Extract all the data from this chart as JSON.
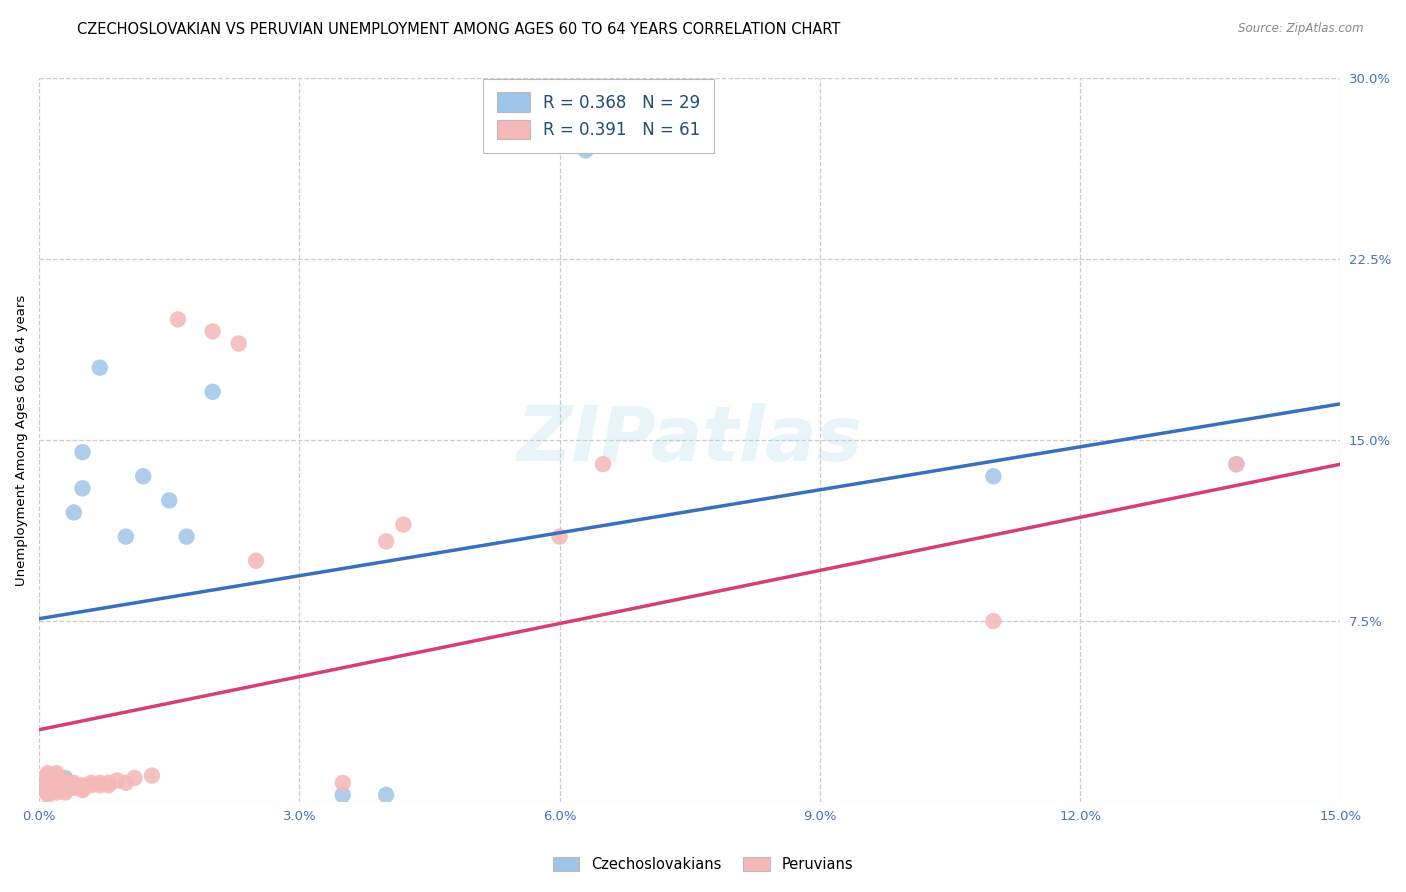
{
  "title": "CZECHOSLOVAKIAN VS PERUVIAN UNEMPLOYMENT AMONG AGES 60 TO 64 YEARS CORRELATION CHART",
  "source": "Source: ZipAtlas.com",
  "ylabel": "Unemployment Among Ages 60 to 64 years",
  "xlim": [
    0.0,
    0.15
  ],
  "ylim": [
    0.0,
    0.3
  ],
  "xticks": [
    0.0,
    0.03,
    0.06,
    0.09,
    0.12,
    0.15
  ],
  "yticks": [
    0.0,
    0.075,
    0.15,
    0.225,
    0.3
  ],
  "xtick_labels": [
    "0.0%",
    "3.0%",
    "6.0%",
    "9.0%",
    "12.0%",
    "15.0%"
  ],
  "ytick_labels_right": [
    "",
    "7.5%",
    "15.0%",
    "22.5%",
    "30.0%"
  ],
  "czech_color": "#9fc5e8",
  "peru_color": "#f4b8b8",
  "czech_line_color": "#3a6fbe",
  "peru_line_color": "#d44070",
  "grid_color": "#cccccc",
  "background_color": "#ffffff",
  "watermark": "ZIPatlas",
  "tick_color": "#4472c4",
  "legend_color": "#1f4e79",
  "czech_x": [
    0.001,
    0.001,
    0.001,
    0.001,
    0.001,
    0.001,
    0.001,
    0.002,
    0.002,
    0.002,
    0.002,
    0.003,
    0.003,
    0.003,
    0.003,
    0.004,
    0.005,
    0.005,
    0.007,
    0.01,
    0.012,
    0.015,
    0.017,
    0.02,
    0.035,
    0.04,
    0.063,
    0.11,
    0.138
  ],
  "czech_y": [
    0.004,
    0.005,
    0.006,
    0.007,
    0.008,
    0.009,
    0.01,
    0.005,
    0.007,
    0.008,
    0.009,
    0.006,
    0.008,
    0.009,
    0.01,
    0.12,
    0.13,
    0.145,
    0.18,
    0.11,
    0.135,
    0.125,
    0.11,
    0.17,
    0.003,
    0.003,
    0.27,
    0.135,
    0.14
  ],
  "peru_x": [
    0.001,
    0.001,
    0.001,
    0.001,
    0.001,
    0.001,
    0.001,
    0.001,
    0.001,
    0.001,
    0.001,
    0.001,
    0.001,
    0.001,
    0.001,
    0.001,
    0.001,
    0.002,
    0.002,
    0.002,
    0.002,
    0.002,
    0.002,
    0.002,
    0.002,
    0.002,
    0.002,
    0.002,
    0.003,
    0.003,
    0.003,
    0.003,
    0.003,
    0.003,
    0.004,
    0.004,
    0.004,
    0.005,
    0.005,
    0.005,
    0.006,
    0.006,
    0.007,
    0.007,
    0.008,
    0.008,
    0.009,
    0.01,
    0.011,
    0.013,
    0.016,
    0.02,
    0.023,
    0.025,
    0.035,
    0.04,
    0.042,
    0.06,
    0.065,
    0.11,
    0.138
  ],
  "peru_y": [
    0.003,
    0.004,
    0.005,
    0.005,
    0.006,
    0.006,
    0.007,
    0.007,
    0.008,
    0.008,
    0.009,
    0.009,
    0.01,
    0.01,
    0.011,
    0.011,
    0.012,
    0.004,
    0.005,
    0.005,
    0.006,
    0.007,
    0.008,
    0.009,
    0.01,
    0.01,
    0.011,
    0.012,
    0.004,
    0.005,
    0.006,
    0.007,
    0.008,
    0.009,
    0.006,
    0.007,
    0.008,
    0.005,
    0.006,
    0.007,
    0.007,
    0.008,
    0.007,
    0.008,
    0.007,
    0.008,
    0.009,
    0.008,
    0.01,
    0.011,
    0.2,
    0.195,
    0.19,
    0.1,
    0.008,
    0.108,
    0.115,
    0.11,
    0.14,
    0.075,
    0.14
  ],
  "czech_regline_x": [
    0.0,
    0.15
  ],
  "czech_regline_y": [
    0.076,
    0.165
  ],
  "peru_regline_x": [
    0.0,
    0.15
  ],
  "peru_regline_y": [
    0.03,
    0.14
  ]
}
